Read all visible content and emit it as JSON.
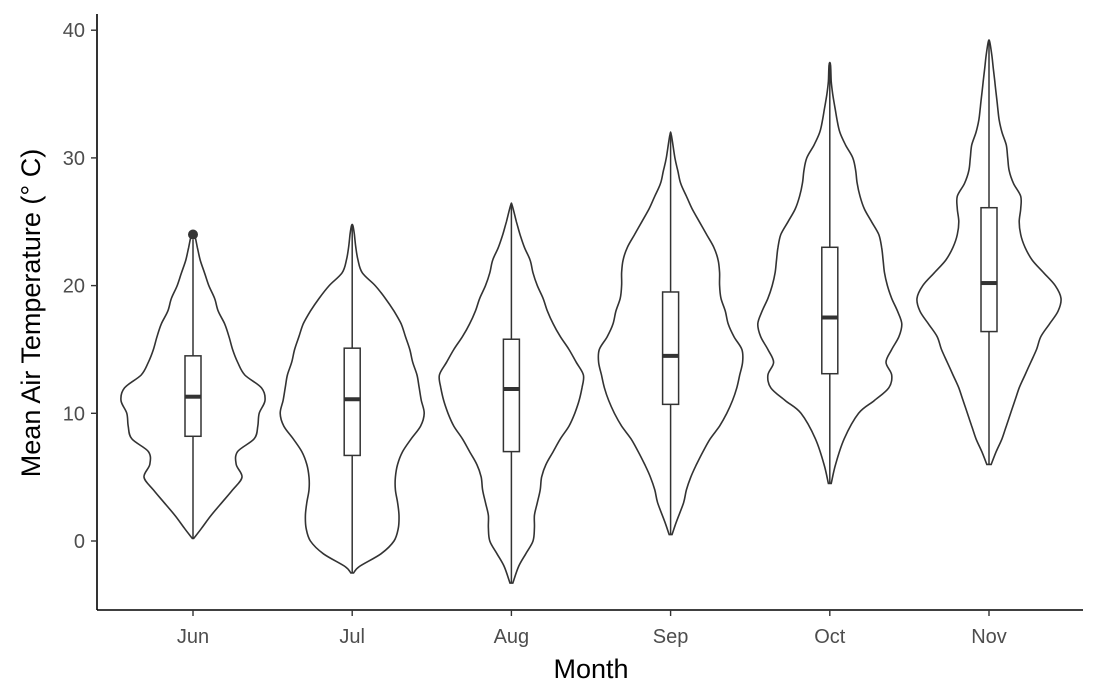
{
  "chart_data": {
    "type": "violin",
    "xlabel": "Month",
    "ylabel": "Mean Air Temperature (° C)",
    "ylim": [
      -5.3,
      41
    ],
    "yticks": [
      0,
      10,
      20,
      30,
      40
    ],
    "grid": false,
    "legend": "none",
    "colors": {
      "line": "#333333",
      "axis": "#000000",
      "tick_text": "#4d4d4d"
    },
    "categories": [
      "Jun",
      "Jul",
      "Aug",
      "Sep",
      "Oct",
      "Nov"
    ],
    "series": [
      {
        "category": "Jun",
        "box": {
          "q1": 8.2,
          "median": 11.3,
          "q3": 14.5,
          "whisker_low": 0.2,
          "whisker_high": 23.6
        },
        "outliers": [
          24.0
        ],
        "violin_profile": [
          [
            0.2,
            0.01
          ],
          [
            1,
            0.12
          ],
          [
            2,
            0.25
          ],
          [
            3,
            0.4
          ],
          [
            4,
            0.55
          ],
          [
            5,
            0.68
          ],
          [
            6,
            0.6
          ],
          [
            7,
            0.62
          ],
          [
            8,
            0.85
          ],
          [
            9,
            0.9
          ],
          [
            10,
            0.92
          ],
          [
            11,
            1.0
          ],
          [
            12,
            0.95
          ],
          [
            13,
            0.72
          ],
          [
            14,
            0.62
          ],
          [
            15,
            0.55
          ],
          [
            16,
            0.5
          ],
          [
            17,
            0.44
          ],
          [
            18,
            0.35
          ],
          [
            19,
            0.3
          ],
          [
            20,
            0.22
          ],
          [
            21,
            0.16
          ],
          [
            22,
            0.1
          ],
          [
            23,
            0.06
          ],
          [
            24,
            0.02
          ]
        ]
      },
      {
        "category": "Jul",
        "box": {
          "q1": 6.7,
          "median": 11.1,
          "q3": 15.1,
          "whisker_low": -2.5,
          "whisker_high": 24.7
        },
        "outliers": [],
        "violin_profile": [
          [
            -2.5,
            0.02
          ],
          [
            -2,
            0.1
          ],
          [
            -1,
            0.4
          ],
          [
            0,
            0.58
          ],
          [
            1,
            0.64
          ],
          [
            2,
            0.65
          ],
          [
            3,
            0.63
          ],
          [
            4,
            0.6
          ],
          [
            5,
            0.6
          ],
          [
            6,
            0.63
          ],
          [
            7,
            0.7
          ],
          [
            8,
            0.82
          ],
          [
            9,
            0.95
          ],
          [
            10,
            1.0
          ],
          [
            11,
            0.96
          ],
          [
            12,
            0.93
          ],
          [
            13,
            0.9
          ],
          [
            14,
            0.84
          ],
          [
            15,
            0.8
          ],
          [
            16,
            0.74
          ],
          [
            17,
            0.68
          ],
          [
            18,
            0.58
          ],
          [
            19,
            0.46
          ],
          [
            20,
            0.32
          ],
          [
            21,
            0.14
          ],
          [
            22,
            0.08
          ],
          [
            23,
            0.05
          ],
          [
            24,
            0.03
          ],
          [
            24.7,
            0.01
          ]
        ]
      },
      {
        "category": "Aug",
        "box": {
          "q1": 7.0,
          "median": 11.9,
          "q3": 15.8,
          "whisker_low": -3.3,
          "whisker_high": 26.3
        },
        "outliers": [],
        "violin_profile": [
          [
            -3.3,
            0.02
          ],
          [
            -2,
            0.1
          ],
          [
            -1,
            0.2
          ],
          [
            0,
            0.3
          ],
          [
            1,
            0.32
          ],
          [
            2,
            0.32
          ],
          [
            3,
            0.36
          ],
          [
            4,
            0.4
          ],
          [
            5,
            0.42
          ],
          [
            6,
            0.48
          ],
          [
            7,
            0.58
          ],
          [
            8,
            0.68
          ],
          [
            9,
            0.8
          ],
          [
            10,
            0.88
          ],
          [
            11,
            0.94
          ],
          [
            12,
            0.98
          ],
          [
            13,
            1.0
          ],
          [
            14,
            0.9
          ],
          [
            15,
            0.8
          ],
          [
            16,
            0.68
          ],
          [
            17,
            0.58
          ],
          [
            18,
            0.5
          ],
          [
            19,
            0.44
          ],
          [
            20,
            0.36
          ],
          [
            21,
            0.3
          ],
          [
            22,
            0.26
          ],
          [
            23,
            0.18
          ],
          [
            24,
            0.12
          ],
          [
            25,
            0.07
          ],
          [
            26.3,
            0.01
          ]
        ]
      },
      {
        "category": "Sep",
        "box": {
          "q1": 10.7,
          "median": 14.5,
          "q3": 19.5,
          "whisker_low": 0.5,
          "whisker_high": 31.8
        },
        "outliers": [],
        "violin_profile": [
          [
            0.5,
            0.02
          ],
          [
            1.5,
            0.08
          ],
          [
            3,
            0.18
          ],
          [
            4,
            0.22
          ],
          [
            5,
            0.28
          ],
          [
            6,
            0.36
          ],
          [
            7,
            0.45
          ],
          [
            8,
            0.55
          ],
          [
            9,
            0.68
          ],
          [
            10,
            0.78
          ],
          [
            11,
            0.86
          ],
          [
            12,
            0.92
          ],
          [
            13,
            0.96
          ],
          [
            14,
            1.0
          ],
          [
            15,
            0.99
          ],
          [
            16,
            0.88
          ],
          [
            17,
            0.8
          ],
          [
            18,
            0.76
          ],
          [
            19,
            0.7
          ],
          [
            20,
            0.68
          ],
          [
            21,
            0.68
          ],
          [
            22,
            0.66
          ],
          [
            23,
            0.6
          ],
          [
            24,
            0.5
          ],
          [
            25,
            0.4
          ],
          [
            26,
            0.3
          ],
          [
            27,
            0.22
          ],
          [
            28,
            0.14
          ],
          [
            29,
            0.1
          ],
          [
            30,
            0.06
          ],
          [
            31.8,
            0.01
          ]
        ]
      },
      {
        "category": "Oct",
        "box": {
          "q1": 13.1,
          "median": 17.5,
          "q3": 23.0,
          "whisker_low": 4.5,
          "whisker_high": 37.3
        },
        "outliers": [],
        "violin_profile": [
          [
            4.5,
            0.02
          ],
          [
            6,
            0.08
          ],
          [
            8,
            0.2
          ],
          [
            10,
            0.4
          ],
          [
            11,
            0.62
          ],
          [
            12,
            0.82
          ],
          [
            13,
            0.86
          ],
          [
            14,
            0.78
          ],
          [
            15,
            0.86
          ],
          [
            16,
            0.96
          ],
          [
            17,
            1.0
          ],
          [
            18,
            0.94
          ],
          [
            19,
            0.86
          ],
          [
            20,
            0.8
          ],
          [
            21,
            0.76
          ],
          [
            22,
            0.74
          ],
          [
            23,
            0.72
          ],
          [
            24,
            0.68
          ],
          [
            25,
            0.58
          ],
          [
            26,
            0.48
          ],
          [
            27,
            0.42
          ],
          [
            28,
            0.38
          ],
          [
            29,
            0.36
          ],
          [
            30,
            0.32
          ],
          [
            31,
            0.22
          ],
          [
            32,
            0.14
          ],
          [
            33,
            0.1
          ],
          [
            34,
            0.07
          ],
          [
            35,
            0.04
          ],
          [
            36,
            0.02
          ],
          [
            37.3,
            0.01
          ]
        ]
      },
      {
        "category": "Nov",
        "box": {
          "q1": 16.4,
          "median": 20.2,
          "q3": 26.1,
          "whisker_low": 6.0,
          "whisker_high": 39.1
        },
        "outliers": [],
        "violin_profile": [
          [
            6,
            0.03
          ],
          [
            7,
            0.1
          ],
          [
            8,
            0.18
          ],
          [
            9,
            0.24
          ],
          [
            10,
            0.3
          ],
          [
            11,
            0.36
          ],
          [
            12,
            0.42
          ],
          [
            13,
            0.5
          ],
          [
            14,
            0.58
          ],
          [
            15,
            0.66
          ],
          [
            16,
            0.72
          ],
          [
            17,
            0.84
          ],
          [
            18,
            0.96
          ],
          [
            19,
            1.0
          ],
          [
            20,
            0.92
          ],
          [
            21,
            0.76
          ],
          [
            22,
            0.6
          ],
          [
            23,
            0.5
          ],
          [
            24,
            0.44
          ],
          [
            25,
            0.42
          ],
          [
            26,
            0.44
          ],
          [
            27,
            0.44
          ],
          [
            28,
            0.34
          ],
          [
            29,
            0.28
          ],
          [
            30,
            0.26
          ],
          [
            31,
            0.24
          ],
          [
            32,
            0.18
          ],
          [
            33,
            0.14
          ],
          [
            34,
            0.12
          ],
          [
            35,
            0.1
          ],
          [
            36,
            0.08
          ],
          [
            37,
            0.06
          ],
          [
            38,
            0.04
          ],
          [
            39.1,
            0.01
          ]
        ]
      }
    ]
  }
}
